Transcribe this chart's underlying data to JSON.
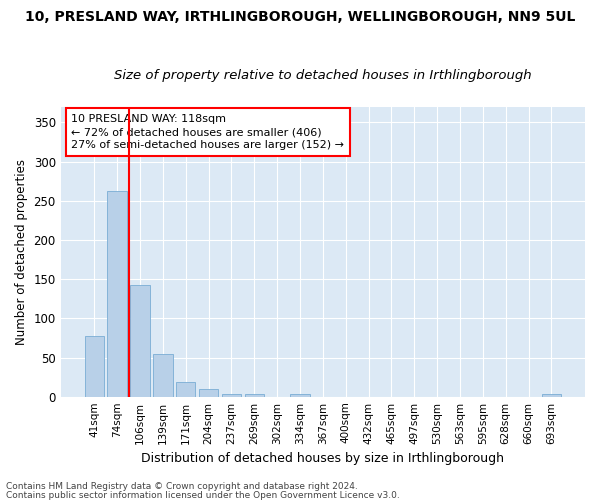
{
  "title": "10, PRESLAND WAY, IRTHLINGBOROUGH, WELLINGBOROUGH, NN9 5UL",
  "subtitle": "Size of property relative to detached houses in Irthlingborough",
  "xlabel": "Distribution of detached houses by size in Irthlingborough",
  "ylabel": "Number of detached properties",
  "bar_color": "#b8d0e8",
  "bar_edge_color": "#7aadd4",
  "background_color": "#dce9f5",
  "grid_color": "#ffffff",
  "categories": [
    "41sqm",
    "74sqm",
    "106sqm",
    "139sqm",
    "171sqm",
    "204sqm",
    "237sqm",
    "269sqm",
    "302sqm",
    "334sqm",
    "367sqm",
    "400sqm",
    "432sqm",
    "465sqm",
    "497sqm",
    "530sqm",
    "563sqm",
    "595sqm",
    "628sqm",
    "660sqm",
    "693sqm"
  ],
  "values": [
    78,
    262,
    143,
    54,
    19,
    10,
    4,
    4,
    0,
    4,
    0,
    0,
    0,
    0,
    0,
    0,
    0,
    0,
    0,
    0,
    3
  ],
  "ylim": [
    0,
    370
  ],
  "yticks": [
    0,
    50,
    100,
    150,
    200,
    250,
    300,
    350
  ],
  "property_label": "10 PRESLAND WAY: 118sqm",
  "pct_smaller": 72,
  "n_smaller": 406,
  "pct_larger": 27,
  "n_larger": 152,
  "vline_x": 1.5,
  "footer_line1": "Contains HM Land Registry data © Crown copyright and database right 2024.",
  "footer_line2": "Contains public sector information licensed under the Open Government Licence v3.0."
}
